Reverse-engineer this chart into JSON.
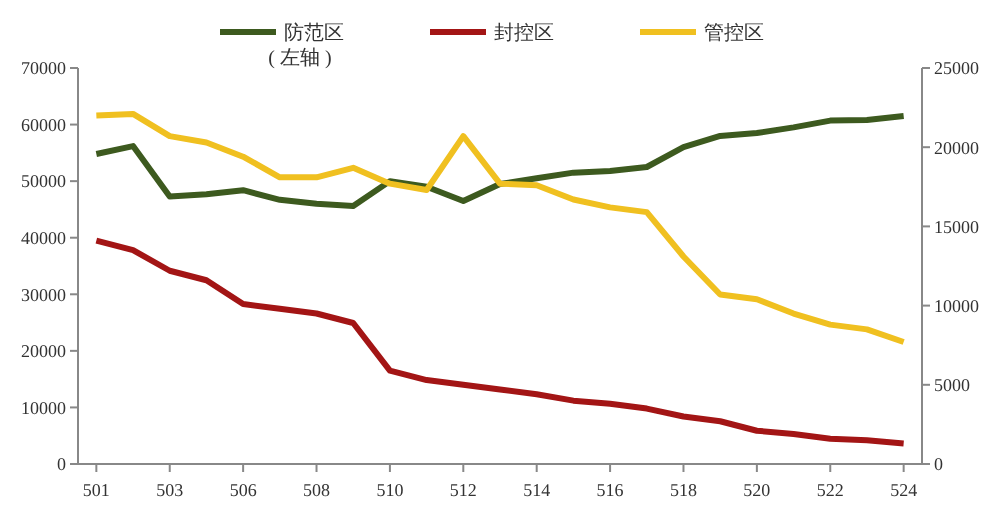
{
  "chart_data": {
    "type": "line",
    "categories": [
      "501",
      null,
      "503",
      null,
      "506",
      null,
      "508",
      null,
      "510",
      null,
      "512",
      null,
      "514",
      null,
      "516",
      null,
      "518",
      null,
      "520",
      null,
      "522",
      null,
      "524"
    ],
    "series": [
      {
        "name": "防范区",
        "color": "#3d5a1f",
        "values": [
          54800,
          56200,
          47300,
          47700,
          48400,
          46700,
          46000,
          45600,
          50000,
          49000,
          46500,
          49500,
          50500,
          51500,
          51800,
          52500,
          56000,
          58000,
          58500,
          59500,
          60700,
          60800,
          61500
        ]
      },
      {
        "name": "封控区",
        "color": "#a31515",
        "axis": "y2",
        "values": [
          14100,
          13500,
          12200,
          11600,
          10100,
          9800,
          9500,
          8900,
          5900,
          5300,
          5000,
          4700,
          4400,
          4000,
          3800,
          3500,
          3000,
          2700,
          2100,
          1900,
          1600,
          1500,
          1300
        ]
      },
      {
        "name": "管控区",
        "color": "#f0c020",
        "axis": "y2",
        "values": [
          22000,
          22100,
          20700,
          20300,
          19400,
          18100,
          18100,
          18700,
          17700,
          17300,
          20700,
          17700,
          17600,
          16700,
          16200,
          15900,
          13100,
          10700,
          10400,
          9500,
          8800,
          8500,
          7700
        ]
      }
    ],
    "ylim": [
      0,
      70000
    ],
    "yticks": [
      0,
      10000,
      20000,
      30000,
      40000,
      50000,
      60000,
      70000
    ],
    "y2lim": [
      0,
      25000
    ],
    "y2ticks": [
      0,
      5000,
      10000,
      15000,
      20000,
      25000
    ],
    "annotations": [
      "( 左轴 )"
    ],
    "legend": "top",
    "grid": false,
    "marker": "none",
    "line_style": "solid"
  }
}
